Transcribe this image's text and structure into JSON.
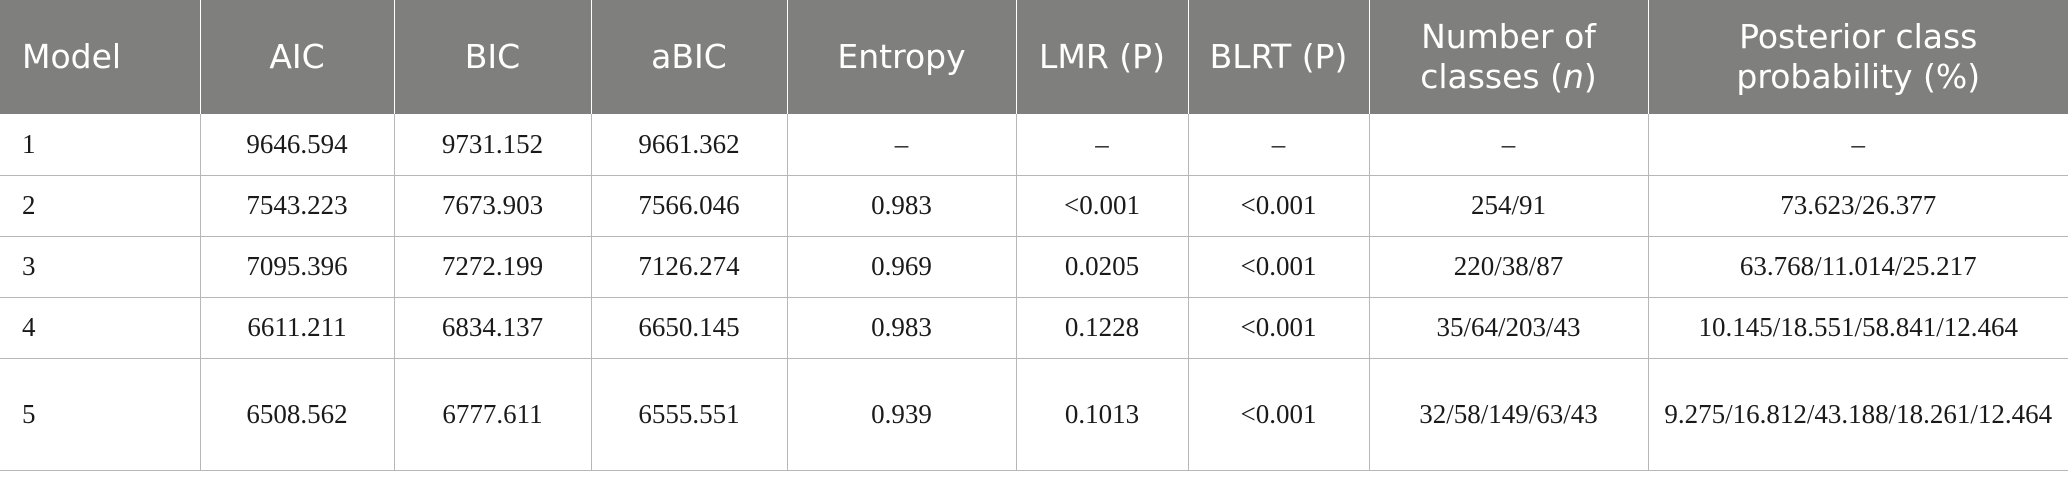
{
  "table": {
    "headers": {
      "model": "Model",
      "aic": "AIC",
      "bic": "BIC",
      "abic": "aBIC",
      "entropy": "Entropy",
      "lmr": "LMR (P)",
      "blrt": "BLRT (P)",
      "classes_prefix": "Number of classes (",
      "classes_italic": "n",
      "classes_suffix": ")",
      "posterior": "Posterior class probability (%)"
    },
    "rows": [
      {
        "model": "1",
        "aic": "9646.594",
        "bic": "9731.152",
        "abic": "9661.362",
        "entropy": "–",
        "lmr": "–",
        "blrt": "–",
        "classes": "–",
        "posterior": "–"
      },
      {
        "model": "2",
        "aic": "7543.223",
        "bic": "7673.903",
        "abic": "7566.046",
        "entropy": "0.983",
        "lmr": "<0.001",
        "blrt": "<0.001",
        "classes": "254/91",
        "posterior": "73.623/26.377"
      },
      {
        "model": "3",
        "aic": "7095.396",
        "bic": "7272.199",
        "abic": "7126.274",
        "entropy": "0.969",
        "lmr": "0.0205",
        "blrt": "<0.001",
        "classes": "220/38/87",
        "posterior": "63.768/11.014/25.217"
      },
      {
        "model": "4",
        "aic": "6611.211",
        "bic": "6834.137",
        "abic": "6650.145",
        "entropy": "0.983",
        "lmr": "0.1228",
        "blrt": "<0.001",
        "classes": "35/64/203/43",
        "posterior": "10.145/18.551/58.841/12.464"
      },
      {
        "model": "5",
        "aic": "6508.562",
        "bic": "6777.611",
        "abic": "6555.551",
        "entropy": "0.939",
        "lmr": "0.1013",
        "blrt": "<0.001",
        "classes": "32/58/149/63/43",
        "posterior": "9.275/16.812/43.188/18.261/12.464"
      }
    ]
  }
}
